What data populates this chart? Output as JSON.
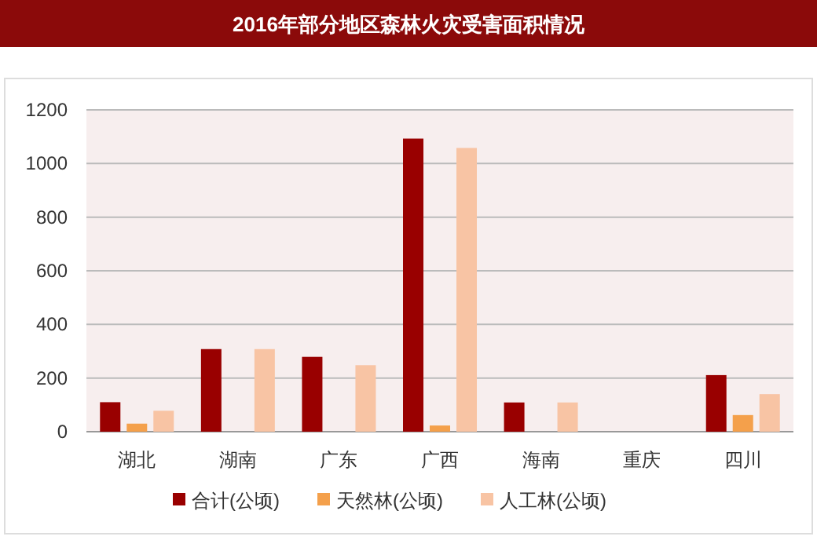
{
  "chart_data": {
    "type": "bar",
    "title": "2016年部分地区森林火灾受害面积情况",
    "categories": [
      "湖北",
      "湖南",
      "广东",
      "广西",
      "海南",
      "重庆",
      "四川"
    ],
    "series": [
      {
        "name": "合计(公顷)",
        "color": "#990000",
        "values": [
          110,
          308,
          279,
          1093,
          109,
          0,
          211
        ]
      },
      {
        "name": "天然林(公顷)",
        "color": "#f4a04b",
        "values": [
          30,
          0,
          0,
          23,
          0,
          0,
          62
        ]
      },
      {
        "name": "人工林(公顷)",
        "color": "#f8c4a4",
        "values": [
          78,
          308,
          248,
          1058,
          109,
          0,
          140
        ]
      }
    ],
    "ylim": [
      0,
      1200
    ],
    "yticks": [
      0,
      200,
      400,
      600,
      800,
      1000,
      1200
    ],
    "grid": "y",
    "legend": "bottom"
  }
}
